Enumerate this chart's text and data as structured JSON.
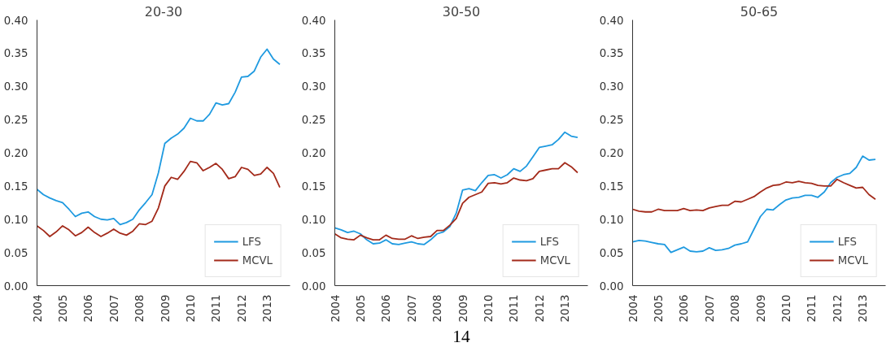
{
  "chart_data": [
    {
      "type": "line",
      "title": "20-30",
      "x": [
        2004,
        2004.25,
        2004.5,
        2004.75,
        2005,
        2005.25,
        2005.5,
        2005.75,
        2006,
        2006.25,
        2006.5,
        2006.75,
        2007,
        2007.25,
        2007.5,
        2007.75,
        2008,
        2008.25,
        2008.5,
        2008.75,
        2009,
        2009.25,
        2009.5,
        2009.75,
        2010,
        2010.25,
        2010.5,
        2010.75,
        2011,
        2011.25,
        2011.5,
        2011.75,
        2012,
        2012.25,
        2012.5,
        2012.75,
        2013,
        2013.25,
        2013.5
      ],
      "series": [
        {
          "name": "LFS",
          "color": "#1f9ae0",
          "values": [
            0.145,
            0.137,
            0.132,
            0.128,
            0.125,
            0.115,
            0.104,
            0.109,
            0.111,
            0.104,
            0.1,
            0.099,
            0.101,
            0.092,
            0.095,
            0.1,
            0.114,
            0.125,
            0.137,
            0.17,
            0.214,
            0.222,
            0.228,
            0.237,
            0.252,
            0.248,
            0.248,
            0.258,
            0.275,
            0.272,
            0.274,
            0.291,
            0.314,
            0.315,
            0.323,
            0.344,
            0.356,
            0.341,
            0.333
          ]
        },
        {
          "name": "MCVL",
          "color": "#a32a1a",
          "values": [
            0.09,
            0.083,
            0.074,
            0.081,
            0.09,
            0.084,
            0.075,
            0.08,
            0.088,
            0.08,
            0.074,
            0.079,
            0.085,
            0.079,
            0.076,
            0.082,
            0.093,
            0.092,
            0.097,
            0.117,
            0.15,
            0.163,
            0.16,
            0.172,
            0.187,
            0.185,
            0.173,
            0.178,
            0.184,
            0.175,
            0.161,
            0.164,
            0.178,
            0.175,
            0.166,
            0.168,
            0.178,
            0.169,
            0.148
          ]
        }
      ],
      "xlim": [
        2004,
        2013.9
      ],
      "xticks": [
        2004,
        2005,
        2006,
        2007,
        2008,
        2009,
        2010,
        2011,
        2012,
        2013
      ],
      "ylim": [
        0,
        0.4
      ],
      "yticks": [
        {
          "value": 0,
          "label": "0.00"
        },
        {
          "value": 0.05,
          "label": "0.05"
        },
        {
          "value": 0.1,
          "label": "0.10"
        },
        {
          "value": 0.15,
          "label": "0.15"
        },
        {
          "value": 0.2,
          "label": "0.20"
        },
        {
          "value": 0.25,
          "label": "0.25"
        },
        {
          "value": 0.3,
          "label": "0.30"
        },
        {
          "value": 0.35,
          "label": "0.35"
        },
        {
          "value": 0.4,
          "label": "0.40"
        }
      ],
      "grid": false,
      "legend": "bottom right"
    },
    {
      "type": "line",
      "title": "30-50",
      "x": [
        2004,
        2004.25,
        2004.5,
        2004.75,
        2005,
        2005.25,
        2005.5,
        2005.75,
        2006,
        2006.25,
        2006.5,
        2006.75,
        2007,
        2007.25,
        2007.5,
        2007.75,
        2008,
        2008.25,
        2008.5,
        2008.75,
        2009,
        2009.25,
        2009.5,
        2009.75,
        2010,
        2010.25,
        2010.5,
        2010.75,
        2011,
        2011.25,
        2011.5,
        2011.75,
        2012,
        2012.25,
        2012.5,
        2012.75,
        2013,
        2013.25,
        2013.5
      ],
      "series": [
        {
          "name": "LFS",
          "color": "#1f9ae0",
          "values": [
            0.087,
            0.084,
            0.08,
            0.082,
            0.078,
            0.069,
            0.063,
            0.064,
            0.069,
            0.063,
            0.062,
            0.064,
            0.066,
            0.063,
            0.062,
            0.069,
            0.078,
            0.081,
            0.089,
            0.109,
            0.144,
            0.146,
            0.143,
            0.155,
            0.166,
            0.167,
            0.162,
            0.167,
            0.176,
            0.172,
            0.18,
            0.194,
            0.208,
            0.21,
            0.212,
            0.22,
            0.231,
            0.225,
            0.223
          ]
        },
        {
          "name": "MCVL",
          "color": "#a32a1a",
          "values": [
            0.078,
            0.072,
            0.07,
            0.069,
            0.076,
            0.072,
            0.069,
            0.069,
            0.076,
            0.071,
            0.07,
            0.07,
            0.075,
            0.071,
            0.073,
            0.074,
            0.083,
            0.083,
            0.091,
            0.101,
            0.124,
            0.133,
            0.137,
            0.141,
            0.154,
            0.155,
            0.153,
            0.155,
            0.162,
            0.159,
            0.158,
            0.161,
            0.172,
            0.174,
            0.176,
            0.176,
            0.185,
            0.179,
            0.17
          ]
        }
      ],
      "xlim": [
        2004,
        2013.9
      ],
      "xticks": [
        2004,
        2005,
        2006,
        2007,
        2008,
        2009,
        2010,
        2011,
        2012,
        2013
      ],
      "ylim": [
        0,
        0.4
      ],
      "yticks": [
        {
          "value": 0,
          "label": "0.00"
        },
        {
          "value": 0.05,
          "label": "0.05"
        },
        {
          "value": 0.1,
          "label": "0.10"
        },
        {
          "value": 0.15,
          "label": "0.15"
        },
        {
          "value": 0.2,
          "label": "0.20"
        },
        {
          "value": 0.25,
          "label": "0.25"
        },
        {
          "value": 0.3,
          "label": "0.30"
        },
        {
          "value": 0.35,
          "label": "0.35"
        },
        {
          "value": 0.4,
          "label": "0.40"
        }
      ],
      "grid": false,
      "legend": "bottom right",
      "annotations": [
        "14"
      ]
    },
    {
      "type": "line",
      "title": "50-65",
      "x": [
        2004,
        2004.25,
        2004.5,
        2004.75,
        2005,
        2005.25,
        2005.5,
        2005.75,
        2006,
        2006.25,
        2006.5,
        2006.75,
        2007,
        2007.25,
        2007.5,
        2007.75,
        2008,
        2008.25,
        2008.5,
        2008.75,
        2009,
        2009.25,
        2009.5,
        2009.75,
        2010,
        2010.25,
        2010.5,
        2010.75,
        2011,
        2011.25,
        2011.5,
        2011.75,
        2012,
        2012.25,
        2012.5,
        2012.75,
        2013,
        2013.25,
        2013.5
      ],
      "series": [
        {
          "name": "LFS",
          "color": "#1f9ae0",
          "values": [
            0.066,
            0.068,
            0.067,
            0.065,
            0.063,
            0.062,
            0.05,
            0.054,
            0.058,
            0.052,
            0.051,
            0.052,
            0.057,
            0.053,
            0.054,
            0.056,
            0.061,
            0.063,
            0.066,
            0.085,
            0.104,
            0.115,
            0.114,
            0.122,
            0.129,
            0.132,
            0.133,
            0.136,
            0.136,
            0.133,
            0.141,
            0.155,
            0.163,
            0.167,
            0.169,
            0.178,
            0.195,
            0.189,
            0.19
          ]
        },
        {
          "name": "MCVL",
          "color": "#a32a1a",
          "values": [
            0.115,
            0.112,
            0.111,
            0.111,
            0.115,
            0.113,
            0.113,
            0.113,
            0.116,
            0.113,
            0.114,
            0.113,
            0.117,
            0.119,
            0.121,
            0.121,
            0.127,
            0.126,
            0.13,
            0.134,
            0.141,
            0.147,
            0.151,
            0.152,
            0.156,
            0.155,
            0.157,
            0.155,
            0.154,
            0.151,
            0.15,
            0.15,
            0.16,
            0.155,
            0.151,
            0.147,
            0.148,
            0.137,
            0.13
          ]
        }
      ],
      "xlim": [
        2004,
        2013.9
      ],
      "xticks": [
        2004,
        2005,
        2006,
        2007,
        2008,
        2009,
        2010,
        2011,
        2012,
        2013
      ],
      "ylim": [
        0,
        0.4
      ],
      "yticks": [
        {
          "value": 0,
          "label": "0.00"
        },
        {
          "value": 0.05,
          "label": "0.05"
        },
        {
          "value": 0.1,
          "label": "0.10"
        },
        {
          "value": 0.15,
          "label": "0.15"
        },
        {
          "value": 0.2,
          "label": "0.20"
        },
        {
          "value": 0.25,
          "label": "0.25"
        },
        {
          "value": 0.3,
          "label": "0.30"
        },
        {
          "value": 0.35,
          "label": "0.35"
        },
        {
          "value": 0.4,
          "label": "0.40"
        }
      ],
      "grid": false,
      "legend": "bottom right"
    }
  ]
}
